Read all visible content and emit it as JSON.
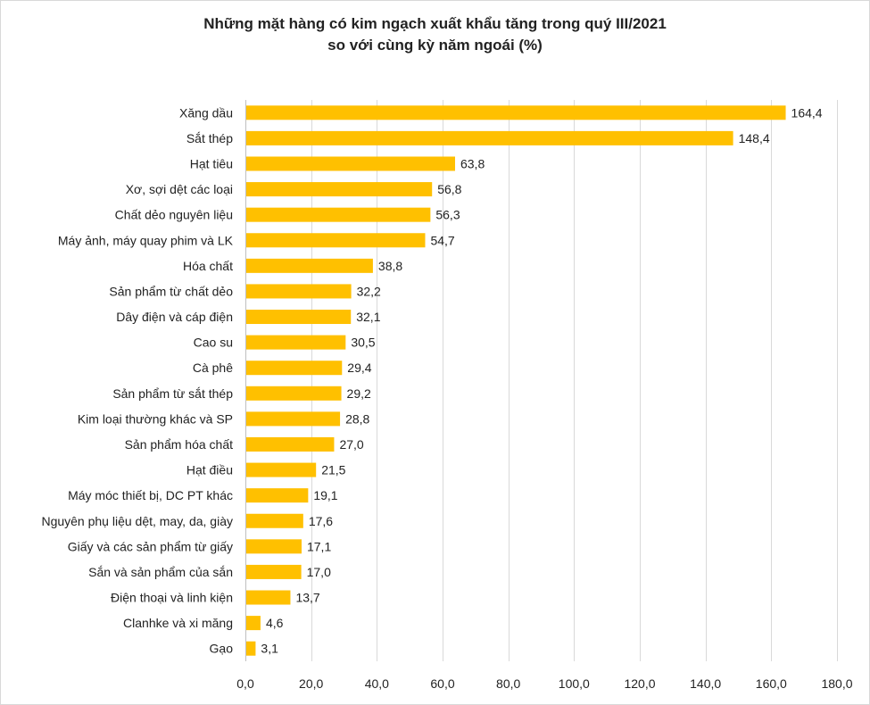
{
  "chart_data": {
    "type": "bar",
    "orientation": "horizontal",
    "title_line1": "Những mặt hàng có kim ngạch xuất khẩu tăng trong quý III/2021",
    "title_line2": "so với cùng kỳ năm ngoái (%)",
    "categories": [
      "Xăng dầu",
      "Sắt thép",
      "Hạt tiêu",
      "Xơ, sợi dệt các loại",
      "Chất dẻo nguyên liệu",
      "Máy ảnh, máy quay phim và LK",
      "Hóa chất",
      "Sản phẩm từ chất dẻo",
      "Dây điện và cáp điện",
      "Cao su",
      "Cà phê",
      "Sản phẩm từ sắt thép",
      "Kim loại thường khác và SP",
      "Sản phẩm hóa chất",
      "Hạt điều",
      "Máy móc thiết bị, DC PT khác",
      "Nguyên phụ liệu dệt, may, da, giày",
      "Giấy và các sản phẩm từ giấy",
      "Sắn và sản phẩm của sắn",
      "Điện thoại và linh kiện",
      "Clanhke và xi măng",
      "Gạo"
    ],
    "values": [
      164.4,
      148.4,
      63.8,
      56.8,
      56.3,
      54.7,
      38.8,
      32.2,
      32.1,
      30.5,
      29.4,
      29.2,
      28.8,
      27.0,
      21.5,
      19.1,
      17.6,
      17.1,
      17.0,
      13.7,
      4.6,
      3.1
    ],
    "value_labels": [
      "164,4",
      "148,4",
      "63,8",
      "56,8",
      "56,3",
      "54,7",
      "38,8",
      "32,2",
      "32,1",
      "30,5",
      "29,4",
      "29,2",
      "28,8",
      "27,0",
      "21,5",
      "19,1",
      "17,6",
      "17,1",
      "17,0",
      "13,7",
      "4,6",
      "3,1"
    ],
    "xlim": [
      0,
      180
    ],
    "x_ticks": [
      0,
      20,
      40,
      60,
      80,
      100,
      120,
      140,
      160,
      180
    ],
    "x_tick_labels": [
      "0,0",
      "20,0",
      "40,0",
      "60,0",
      "80,0",
      "100,0",
      "120,0",
      "140,0",
      "160,0",
      "180,0"
    ],
    "grid": true,
    "bar_color": "#FFC000"
  }
}
